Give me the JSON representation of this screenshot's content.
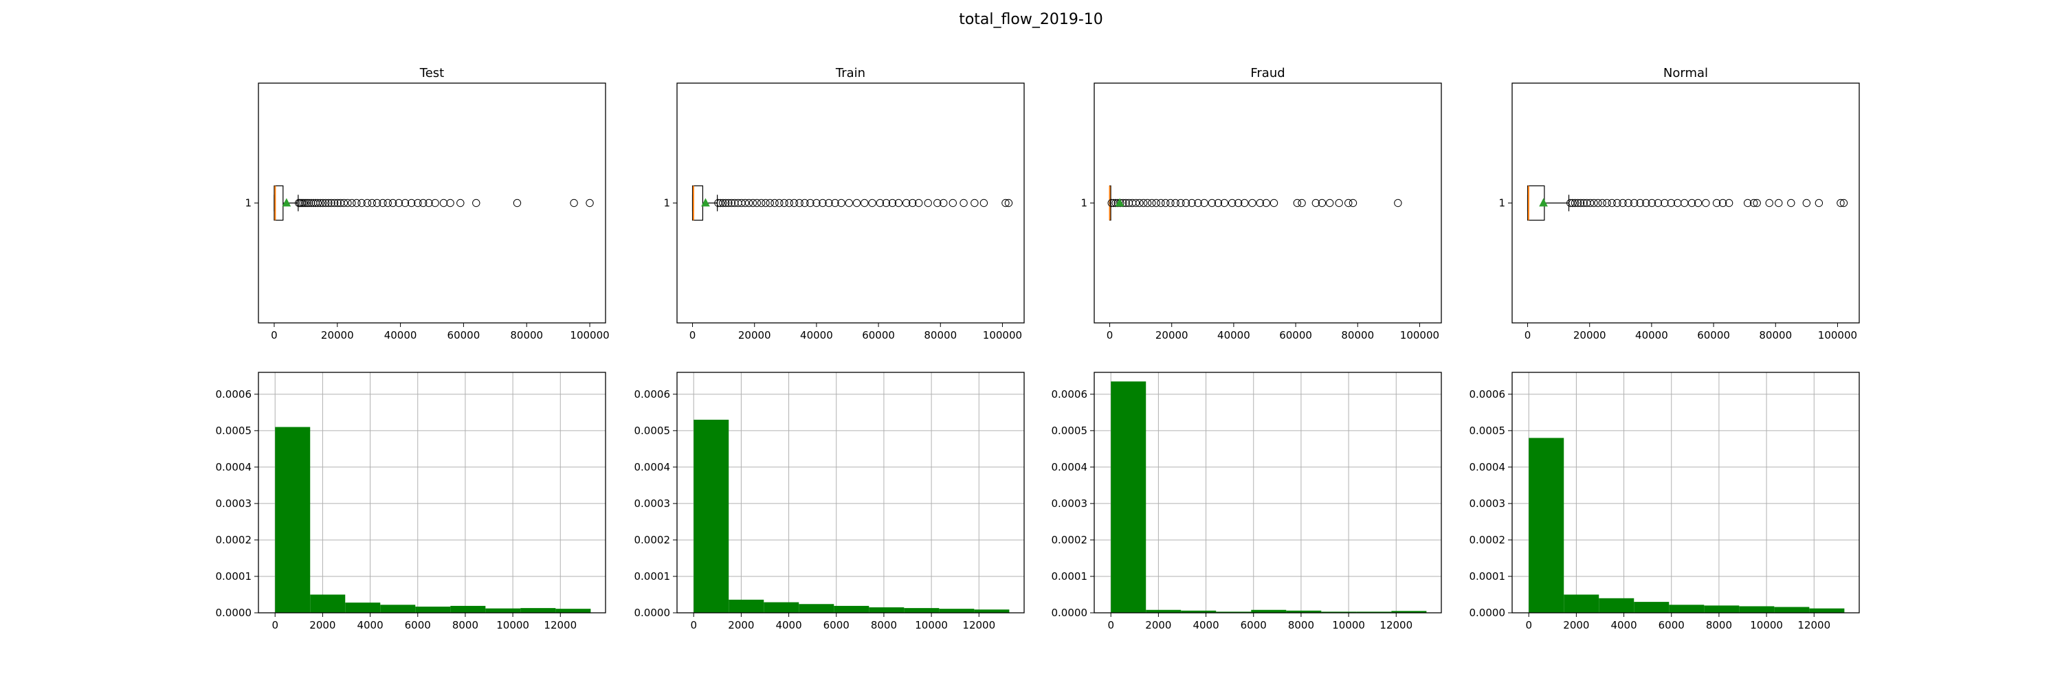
{
  "figure": {
    "title": "total_flow_2019-10"
  },
  "colors": {
    "hist_bar": "#008000",
    "median": "#ff7f0e",
    "mean_marker": "#2ca02c",
    "grid": "#b0b0b0"
  },
  "chart_data": [
    {
      "type": "boxplot",
      "title": "Test",
      "orientation": "horizontal",
      "ytick_label": "1",
      "xlim": [
        -5000,
        105000
      ],
      "xticks": [
        0,
        20000,
        40000,
        60000,
        80000,
        100000
      ],
      "box": {
        "whisker_low": 0,
        "q1": 0,
        "median": 300,
        "q3": 2800,
        "whisker_high": 7600,
        "mean": 3900
      },
      "outliers": [
        7800,
        8200,
        8700,
        9200,
        9800,
        10400,
        11000,
        11700,
        12400,
        13100,
        13800,
        14600,
        15400,
        16300,
        17200,
        18100,
        19100,
        20100,
        21000,
        22100,
        23300,
        24600,
        26100,
        27700,
        29500,
        31000,
        32600,
        34400,
        36000,
        37600,
        39500,
        41500,
        43500,
        45500,
        47200,
        49000,
        51000,
        53700,
        55800,
        59000,
        64000,
        77000,
        95000,
        100000
      ]
    },
    {
      "type": "boxplot",
      "title": "Train",
      "orientation": "horizontal",
      "ytick_label": "1",
      "xlim": [
        -5000,
        107000
      ],
      "xticks": [
        0,
        20000,
        40000,
        60000,
        80000,
        100000
      ],
      "box": {
        "whisker_low": 0,
        "q1": 0,
        "median": 300,
        "q3": 3300,
        "whisker_high": 8000,
        "mean": 4200
      },
      "outliers": [
        8300,
        9000,
        9800,
        10700,
        11600,
        12600,
        13600,
        14700,
        15800,
        17000,
        18200,
        19500,
        20800,
        22200,
        23600,
        25000,
        26500,
        28000,
        29600,
        31200,
        32800,
        34500,
        36200,
        38000,
        40000,
        42000,
        44000,
        46000,
        48000,
        50500,
        53000,
        55500,
        58000,
        60500,
        62500,
        64500,
        66500,
        69000,
        71000,
        73000,
        76000,
        79000,
        81000,
        84000,
        87500,
        91000,
        94000,
        101000,
        102000
      ]
    },
    {
      "type": "boxplot",
      "title": "Fraud",
      "orientation": "horizontal",
      "ytick_label": "1",
      "xlim": [
        -5000,
        107000
      ],
      "xticks": [
        0,
        20000,
        40000,
        60000,
        80000,
        100000
      ],
      "box": {
        "whisker_low": 0,
        "q1": 0,
        "median": 0,
        "q3": 100,
        "whisker_high": 300,
        "mean": 3200
      },
      "outliers": [
        600,
        1200,
        1900,
        2600,
        3400,
        4300,
        5200,
        6200,
        7300,
        8400,
        9600,
        10900,
        12200,
        13600,
        15000,
        16500,
        18000,
        19600,
        21200,
        22900,
        24600,
        26500,
        28500,
        30500,
        33000,
        35000,
        37000,
        39500,
        41500,
        43500,
        46000,
        48500,
        50500,
        53000,
        60500,
        62000,
        66500,
        68500,
        71000,
        74000,
        77000,
        78500,
        93000
      ]
    },
    {
      "type": "boxplot",
      "title": "Normal",
      "orientation": "horizontal",
      "ytick_label": "1",
      "xlim": [
        -5000,
        107000
      ],
      "xticks": [
        0,
        20000,
        40000,
        60000,
        80000,
        100000
      ],
      "box": {
        "whisker_low": 0,
        "q1": 0,
        "median": 300,
        "q3": 5400,
        "whisker_high": 13300,
        "mean": 5100
      },
      "outliers": [
        13800,
        14500,
        15300,
        16200,
        17100,
        18100,
        19100,
        20200,
        21400,
        22700,
        24100,
        25600,
        27200,
        28900,
        30700,
        32500,
        34400,
        36300,
        38200,
        40100,
        42100,
        44200,
        46300,
        48400,
        50600,
        53000,
        55000,
        57500,
        61000,
        63000,
        65000,
        71000,
        73000,
        74000,
        78000,
        81000,
        85000,
        90000,
        94000,
        101000,
        102000
      ]
    },
    {
      "type": "histogram",
      "title": "",
      "grid": true,
      "xlim": [
        -700,
        13900
      ],
      "ylim": [
        0,
        0.00066
      ],
      "xticks": [
        0,
        2000,
        4000,
        6000,
        8000,
        10000,
        12000
      ],
      "yticks": [
        "0.0000",
        "0.0001",
        "0.0002",
        "0.0003",
        "0.0004",
        "0.0005",
        "0.0006"
      ],
      "ytick_values": [
        0,
        0.0001,
        0.0002,
        0.0003,
        0.0004,
        0.0005,
        0.0006
      ],
      "bin_edges": [
        0,
        1475,
        2950,
        4425,
        5900,
        7375,
        8850,
        10325,
        11800,
        13275
      ],
      "values": [
        0.00051,
        5e-05,
        2.8e-05,
        2.2e-05,
        1.7e-05,
        1.9e-05,
        1.2e-05,
        1.3e-05,
        1.1e-05
      ]
    },
    {
      "type": "histogram",
      "title": "",
      "grid": true,
      "xlim": [
        -700,
        13900
      ],
      "ylim": [
        0,
        0.00066
      ],
      "xticks": [
        0,
        2000,
        4000,
        6000,
        8000,
        10000,
        12000
      ],
      "yticks": [
        "0.0000",
        "0.0001",
        "0.0002",
        "0.0003",
        "0.0004",
        "0.0005",
        "0.0006"
      ],
      "ytick_values": [
        0,
        0.0001,
        0.0002,
        0.0003,
        0.0004,
        0.0005,
        0.0006
      ],
      "bin_edges": [
        0,
        1475,
        2950,
        4425,
        5900,
        7375,
        8850,
        10325,
        11800,
        13275
      ],
      "values": [
        0.00053,
        3.6e-05,
        2.9e-05,
        2.4e-05,
        1.9e-05,
        1.5e-05,
        1.3e-05,
        1.1e-05,
        9e-06
      ]
    },
    {
      "type": "histogram",
      "title": "",
      "grid": true,
      "xlim": [
        -700,
        13900
      ],
      "ylim": [
        0,
        0.00066
      ],
      "xticks": [
        0,
        2000,
        4000,
        6000,
        8000,
        10000,
        12000
      ],
      "yticks": [
        "0.0000",
        "0.0001",
        "0.0002",
        "0.0003",
        "0.0004",
        "0.0005",
        "0.0006"
      ],
      "ytick_values": [
        0,
        0.0001,
        0.0002,
        0.0003,
        0.0004,
        0.0005,
        0.0006
      ],
      "bin_edges": [
        0,
        1475,
        2950,
        4425,
        5900,
        7375,
        8850,
        10325,
        11800,
        13275
      ],
      "values": [
        0.000635,
        8e-06,
        6e-06,
        3e-06,
        8e-06,
        6e-06,
        3e-06,
        3e-06,
        5e-06
      ]
    },
    {
      "type": "histogram",
      "title": "",
      "grid": true,
      "xlim": [
        -700,
        13900
      ],
      "ylim": [
        0,
        0.00066
      ],
      "xticks": [
        0,
        2000,
        4000,
        6000,
        8000,
        10000,
        12000
      ],
      "yticks": [
        "0.0000",
        "0.0001",
        "0.0002",
        "0.0003",
        "0.0004",
        "0.0005",
        "0.0006"
      ],
      "ytick_values": [
        0,
        0.0001,
        0.0002,
        0.0003,
        0.0004,
        0.0005,
        0.0006
      ],
      "bin_edges": [
        0,
        1475,
        2950,
        4425,
        5900,
        7375,
        8850,
        10325,
        11800,
        13275
      ],
      "values": [
        0.00048,
        5e-05,
        4e-05,
        3e-05,
        2.2e-05,
        2e-05,
        1.8e-05,
        1.6e-05,
        1.2e-05
      ]
    }
  ]
}
